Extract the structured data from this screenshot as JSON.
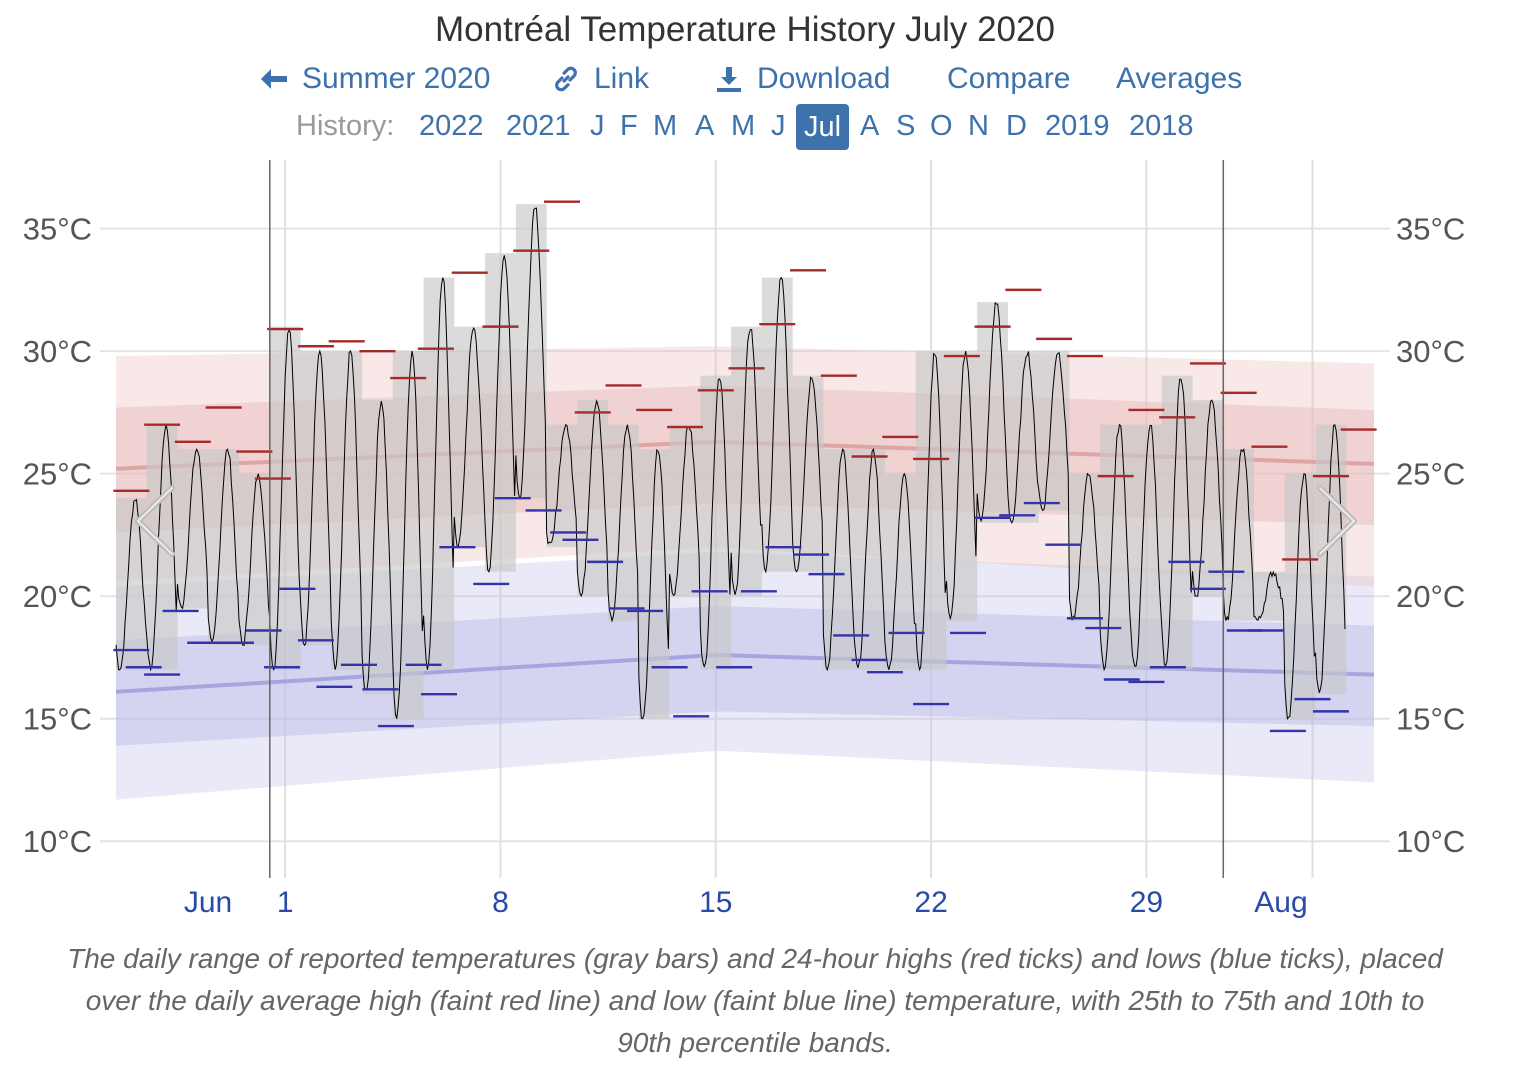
{
  "header": {
    "title": "Montréal Temperature History July 2020",
    "nav": [
      {
        "label": "Summer 2020",
        "icon": "arrow-left-icon"
      },
      {
        "label": "Link",
        "icon": "link-icon"
      },
      {
        "label": "Download",
        "icon": "download-icon"
      },
      {
        "label": "Compare",
        "icon": ""
      },
      {
        "label": "Averages",
        "icon": ""
      }
    ],
    "history_label": "History:",
    "history_items": [
      "2022",
      "2021",
      "J",
      "F",
      "M",
      "A",
      "M",
      "J",
      "Jul",
      "A",
      "S",
      "O",
      "N",
      "D",
      "2019",
      "2018"
    ],
    "history_active": "Jul",
    "accent_color": "#3d72ad"
  },
  "prev_icon": "chevron-left-icon",
  "next_icon": "chevron-right-icon",
  "caption": "The daily range of reported temperatures (gray bars) and 24-hour highs (red ticks) and lows (blue ticks), placed over the daily average high (faint red line) and low (faint blue line) temperature, with 25th to 75th and 10th to 90th percentile bands.",
  "chart_data": {
    "type": "bar",
    "ylim": [
      8.5,
      37.8
    ],
    "yticks": [
      10,
      15,
      20,
      25,
      30,
      35
    ],
    "ytick_labels": [
      "10°C",
      "15°C",
      "20°C",
      "25°C",
      "30°C",
      "35°C"
    ],
    "xlim": [
      -4.5,
      36.4
    ],
    "xticks": [
      {
        "day": -3.5,
        "label": "Jun"
      },
      {
        "day": 1,
        "label": "1"
      },
      {
        "day": 8,
        "label": "8"
      },
      {
        "day": 15,
        "label": "15"
      },
      {
        "day": 22,
        "label": "22"
      },
      {
        "day": 29,
        "label": "29"
      },
      {
        "day": 34.4,
        "label": "Aug"
      }
    ],
    "month_boundaries": [
      0.5,
      31.5
    ],
    "daily_range": [
      {
        "day": -4,
        "low": 17.0,
        "high": 24.0
      },
      {
        "day": -3,
        "low": 17.0,
        "high": 27.0
      },
      {
        "day": -2,
        "low": 19.5,
        "high": 26.0
      },
      {
        "day": -1,
        "low": 18.0,
        "high": 26.0
      },
      {
        "day": 0,
        "low": 18.0,
        "high": 25.0
      },
      {
        "day": 1,
        "low": 17.0,
        "high": 31.0
      },
      {
        "day": 2,
        "low": 18.0,
        "high": 30.0
      },
      {
        "day": 3,
        "low": 17.0,
        "high": 30.0
      },
      {
        "day": 4,
        "low": 16.0,
        "high": 28.0
      },
      {
        "day": 5,
        "low": 15.0,
        "high": 30.0
      },
      {
        "day": 6,
        "low": 17.0,
        "high": 33.0
      },
      {
        "day": 7,
        "low": 22.0,
        "high": 31.0
      },
      {
        "day": 8,
        "low": 21.0,
        "high": 34.0
      },
      {
        "day": 9,
        "low": 24.0,
        "high": 36.0
      },
      {
        "day": 10,
        "low": 22.0,
        "high": 27.0
      },
      {
        "day": 11,
        "low": 20.0,
        "high": 28.0
      },
      {
        "day": 12,
        "low": 19.0,
        "high": 27.0
      },
      {
        "day": 13,
        "low": 15.0,
        "high": 26.0
      },
      {
        "day": 14,
        "low": 20.0,
        "high": 27.0
      },
      {
        "day": 15,
        "low": 17.0,
        "high": 29.0
      },
      {
        "day": 16,
        "low": 20.0,
        "high": 31.0
      },
      {
        "day": 17,
        "low": 21.0,
        "high": 33.0
      },
      {
        "day": 18,
        "low": 21.0,
        "high": 29.0
      },
      {
        "day": 19,
        "low": 17.0,
        "high": 26.0
      },
      {
        "day": 20,
        "low": 17.0,
        "high": 26.0
      },
      {
        "day": 21,
        "low": 17.0,
        "high": 25.0
      },
      {
        "day": 22,
        "low": 17.0,
        "high": 30.0
      },
      {
        "day": 23,
        "low": 19.0,
        "high": 30.0
      },
      {
        "day": 24,
        "low": 23.0,
        "high": 32.0
      },
      {
        "day": 25,
        "low": 23.0,
        "high": 30.0
      },
      {
        "day": 26,
        "low": 23.5,
        "high": 30.0
      },
      {
        "day": 27,
        "low": 19.0,
        "high": 25.0
      },
      {
        "day": 28,
        "low": 17.0,
        "high": 27.0
      },
      {
        "day": 29,
        "low": 17.0,
        "high": 27.0
      },
      {
        "day": 30,
        "low": 17.0,
        "high": 29.0
      },
      {
        "day": 31,
        "low": 20.0,
        "high": 28.0
      },
      {
        "day": 32,
        "low": 19.0,
        "high": 26.0
      },
      {
        "day": 33,
        "low": 19.0,
        "high": 21.0
      },
      {
        "day": 34,
        "low": 15.0,
        "high": 25.0
      },
      {
        "day": 35,
        "low": 16.0,
        "high": 27.0
      }
    ],
    "highs": [
      {
        "day": -4,
        "value": 24.3
      },
      {
        "day": -3,
        "value": 27.0
      },
      {
        "day": -2,
        "value": 26.3
      },
      {
        "day": -1,
        "value": 27.7
      },
      {
        "day": 0,
        "value": 25.9
      },
      {
        "day": 0.6,
        "value": 24.8
      },
      {
        "day": 1,
        "value": 30.9
      },
      {
        "day": 2,
        "value": 30.2
      },
      {
        "day": 3,
        "value": 30.4
      },
      {
        "day": 4,
        "value": 30.0
      },
      {
        "day": 5,
        "value": 28.9
      },
      {
        "day": 5.9,
        "value": 30.1
      },
      {
        "day": 7,
        "value": 33.2
      },
      {
        "day": 8,
        "value": 31.0
      },
      {
        "day": 9,
        "value": 34.1
      },
      {
        "day": 10,
        "value": 36.1
      },
      {
        "day": 11,
        "value": 27.5
      },
      {
        "day": 12,
        "value": 28.6
      },
      {
        "day": 13,
        "value": 27.6
      },
      {
        "day": 14,
        "value": 26.9
      },
      {
        "day": 15,
        "value": 28.4
      },
      {
        "day": 16,
        "value": 29.3
      },
      {
        "day": 17,
        "value": 31.1
      },
      {
        "day": 18,
        "value": 33.3
      },
      {
        "day": 19,
        "value": 29.0
      },
      {
        "day": 20,
        "value": 25.7
      },
      {
        "day": 21,
        "value": 26.5
      },
      {
        "day": 22,
        "value": 25.6
      },
      {
        "day": 23,
        "value": 29.8
      },
      {
        "day": 24,
        "value": 31.0
      },
      {
        "day": 25,
        "value": 32.5
      },
      {
        "day": 26,
        "value": 30.5
      },
      {
        "day": 27,
        "value": 29.8
      },
      {
        "day": 28,
        "value": 24.9
      },
      {
        "day": 29,
        "value": 27.6
      },
      {
        "day": 30,
        "value": 27.3
      },
      {
        "day": 31,
        "value": 29.5
      },
      {
        "day": 32,
        "value": 28.3
      },
      {
        "day": 33,
        "value": 26.1
      },
      {
        "day": 34,
        "value": 21.5
      },
      {
        "day": 35,
        "value": 24.9
      },
      {
        "day": 35.9,
        "value": 26.8
      }
    ],
    "lows": [
      {
        "day": -4,
        "value": 17.8
      },
      {
        "day": -3.6,
        "value": 17.1
      },
      {
        "day": -3,
        "value": 16.8
      },
      {
        "day": -2.4,
        "value": 19.4
      },
      {
        "day": -1.6,
        "value": 18.1
      },
      {
        "day": -0.6,
        "value": 18.1
      },
      {
        "day": 0.3,
        "value": 18.6
      },
      {
        "day": 0.9,
        "value": 17.1
      },
      {
        "day": 1.4,
        "value": 20.3
      },
      {
        "day": 2,
        "value": 18.2
      },
      {
        "day": 2.6,
        "value": 16.3
      },
      {
        "day": 3.4,
        "value": 17.2
      },
      {
        "day": 4.1,
        "value": 16.2
      },
      {
        "day": 4.6,
        "value": 14.7
      },
      {
        "day": 5.5,
        "value": 17.2
      },
      {
        "day": 6,
        "value": 16.0
      },
      {
        "day": 6.6,
        "value": 22.0
      },
      {
        "day": 7.7,
        "value": 20.5
      },
      {
        "day": 8.4,
        "value": 24.0
      },
      {
        "day": 9.4,
        "value": 23.5
      },
      {
        "day": 10.2,
        "value": 22.6
      },
      {
        "day": 10.6,
        "value": 22.3
      },
      {
        "day": 11.4,
        "value": 21.4
      },
      {
        "day": 12.1,
        "value": 19.5
      },
      {
        "day": 12.7,
        "value": 19.4
      },
      {
        "day": 13.5,
        "value": 17.1
      },
      {
        "day": 14.2,
        "value": 15.1
      },
      {
        "day": 14.8,
        "value": 20.2
      },
      {
        "day": 15.6,
        "value": 17.1
      },
      {
        "day": 16.4,
        "value": 20.2
      },
      {
        "day": 17.2,
        "value": 22.0
      },
      {
        "day": 18.1,
        "value": 21.7
      },
      {
        "day": 18.6,
        "value": 20.9
      },
      {
        "day": 19.4,
        "value": 18.4
      },
      {
        "day": 20.0,
        "value": 17.4
      },
      {
        "day": 20.5,
        "value": 16.9
      },
      {
        "day": 21.2,
        "value": 18.5
      },
      {
        "day": 22.0,
        "value": 15.6
      },
      {
        "day": 23.2,
        "value": 18.5
      },
      {
        "day": 24.0,
        "value": 23.2
      },
      {
        "day": 24.8,
        "value": 23.3
      },
      {
        "day": 25.6,
        "value": 23.8
      },
      {
        "day": 26.3,
        "value": 22.1
      },
      {
        "day": 27.0,
        "value": 19.1
      },
      {
        "day": 27.6,
        "value": 18.7
      },
      {
        "day": 28.2,
        "value": 16.6
      },
      {
        "day": 29.0,
        "value": 16.5
      },
      {
        "day": 29.7,
        "value": 17.1
      },
      {
        "day": 30.3,
        "value": 21.4
      },
      {
        "day": 31.0,
        "value": 20.3
      },
      {
        "day": 31.6,
        "value": 21.0
      },
      {
        "day": 32.2,
        "value": 18.6
      },
      {
        "day": 32.9,
        "value": 18.6
      },
      {
        "day": 33.6,
        "value": 14.5
      },
      {
        "day": 34.4,
        "value": 15.8
      },
      {
        "day": 35.0,
        "value": 15.3
      }
    ],
    "avg_high": [
      {
        "day": -4.5,
        "value": 25.2
      },
      {
        "day": 15,
        "value": 26.3
      },
      {
        "day": 36.4,
        "value": 25.4
      }
    ],
    "avg_low": [
      {
        "day": -4.5,
        "value": 16.1
      },
      {
        "day": 15,
        "value": 17.6
      },
      {
        "day": 36.4,
        "value": 16.8
      }
    ],
    "high_p25_p75": [
      {
        "day": -4.5,
        "low": 22.6,
        "high": 27.7
      },
      {
        "day": 15,
        "low": 23.8,
        "high": 28.6
      },
      {
        "day": 36.4,
        "low": 22.9,
        "high": 27.6
      }
    ],
    "high_p10_p90": [
      {
        "day": -4.5,
        "low": 20.6,
        "high": 29.8
      },
      {
        "day": 15,
        "low": 22.0,
        "high": 30.2
      },
      {
        "day": 36.4,
        "low": 20.4,
        "high": 29.5
      }
    ],
    "low_p25_p75": [
      {
        "day": -4.5,
        "low": 13.9,
        "high": 18.2
      },
      {
        "day": 15,
        "low": 15.3,
        "high": 19.6
      },
      {
        "day": 36.4,
        "low": 14.7,
        "high": 18.8
      }
    ],
    "low_p10_p90": [
      {
        "day": -4.5,
        "low": 11.7,
        "high": 20.4
      },
      {
        "day": 15,
        "low": 13.7,
        "high": 21.8
      },
      {
        "day": 36.4,
        "low": 12.4,
        "high": 20.8
      }
    ],
    "colors": {
      "range_bar": "#c8c8c8",
      "high_tick": "#a52a2a",
      "low_tick": "#3333aa",
      "high_line": "#d99a9a",
      "low_line": "#9a9ad9",
      "high_band": "#e8b9b9",
      "low_band": "#babae6",
      "x_label": "#2a4aa8",
      "trace": "#000000"
    }
  }
}
